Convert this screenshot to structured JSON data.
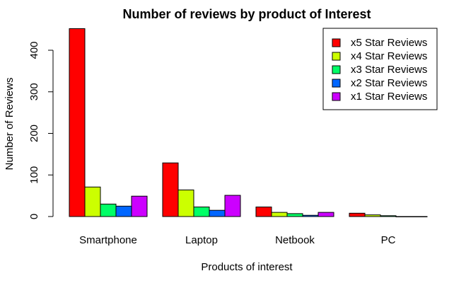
{
  "chart_data": {
    "type": "bar",
    "title": "Number of reviews by product of Interest",
    "xlabel": "Products of interest",
    "ylabel": "Number of Reviews",
    "categories": [
      "Smartphone",
      "Laptop",
      "Netbook",
      "PC"
    ],
    "series": [
      {
        "name": "x5 Star Reviews",
        "color": "#ff0000",
        "values": [
          452,
          129,
          23,
          8
        ]
      },
      {
        "name": "x4 Star Reviews",
        "color": "#ccff00",
        "values": [
          71,
          64,
          10,
          4
        ]
      },
      {
        "name": "x3 Star Reviews",
        "color": "#00ff66",
        "values": [
          30,
          23,
          7,
          2
        ]
      },
      {
        "name": "x2 Star Reviews",
        "color": "#0066ff",
        "values": [
          25,
          15,
          3,
          0
        ]
      },
      {
        "name": "x1 Star Reviews",
        "color": "#cc00ff",
        "values": [
          49,
          51,
          10,
          0
        ]
      }
    ],
    "yticks": [
      0,
      100,
      200,
      300,
      400
    ],
    "ylim": [
      0,
      460
    ],
    "grid": false,
    "legend_position": "top-right"
  }
}
